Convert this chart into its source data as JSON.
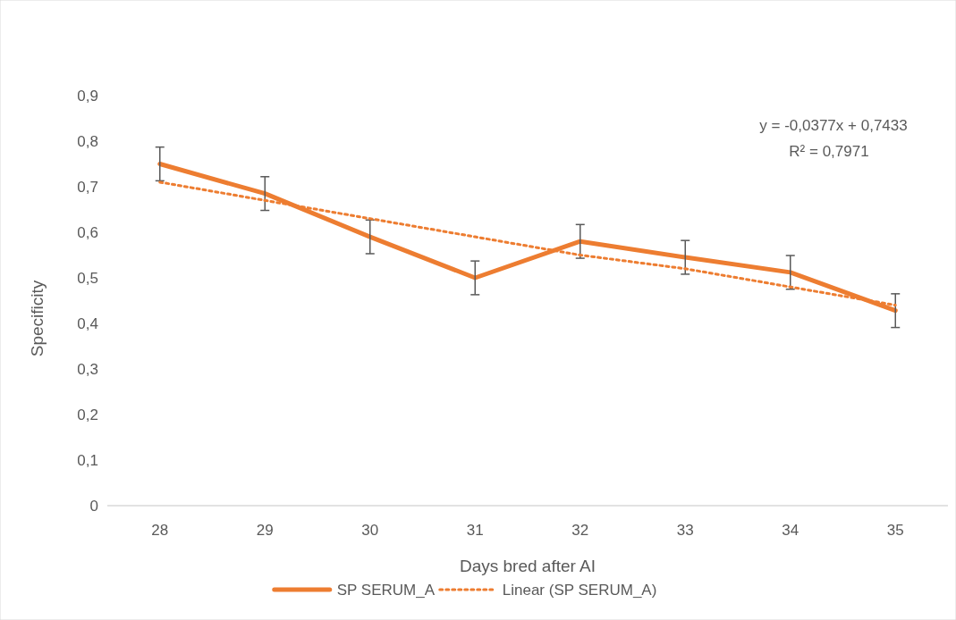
{
  "chart_data": {
    "type": "line",
    "xlabel": "Days bred after AI",
    "ylabel": "Specificity",
    "categories": [
      "28",
      "29",
      "30",
      "31",
      "32",
      "33",
      "34",
      "35"
    ],
    "ylim": [
      0,
      0.9
    ],
    "yticks": [
      {
        "value": 0,
        "label": "0"
      },
      {
        "value": 0.1,
        "label": "0,1"
      },
      {
        "value": 0.2,
        "label": "0,2"
      },
      {
        "value": 0.3,
        "label": "0,3"
      },
      {
        "value": 0.4,
        "label": "0,4"
      },
      {
        "value": 0.5,
        "label": "0,5"
      },
      {
        "value": 0.6,
        "label": "0,6"
      },
      {
        "value": 0.7,
        "label": "0,7"
      },
      {
        "value": 0.8,
        "label": "0,8"
      },
      {
        "value": 0.9,
        "label": "0,9"
      }
    ],
    "series": [
      {
        "name": "SP SERUM_A",
        "color": "#ed7d31",
        "line_style": "solid",
        "values": [
          0.75,
          0.685,
          0.59,
          0.5,
          0.58,
          0.545,
          0.512,
          0.428
        ],
        "errors": [
          0.037,
          0.037,
          0.037,
          0.037,
          0.037,
          0.037,
          0.037,
          0.037
        ]
      },
      {
        "name": "Linear (SP SERUM_A)",
        "color": "#ed7d31",
        "line_style": "dotted",
        "values": [
          0.71,
          0.67,
          0.63,
          0.59,
          0.55,
          0.52,
          0.48,
          0.44
        ]
      }
    ],
    "annotations": [
      "y = -0,0377x + 0,7433",
      "R² = 0,7971"
    ],
    "legend": "bottom",
    "grid": false,
    "marker": "none"
  }
}
